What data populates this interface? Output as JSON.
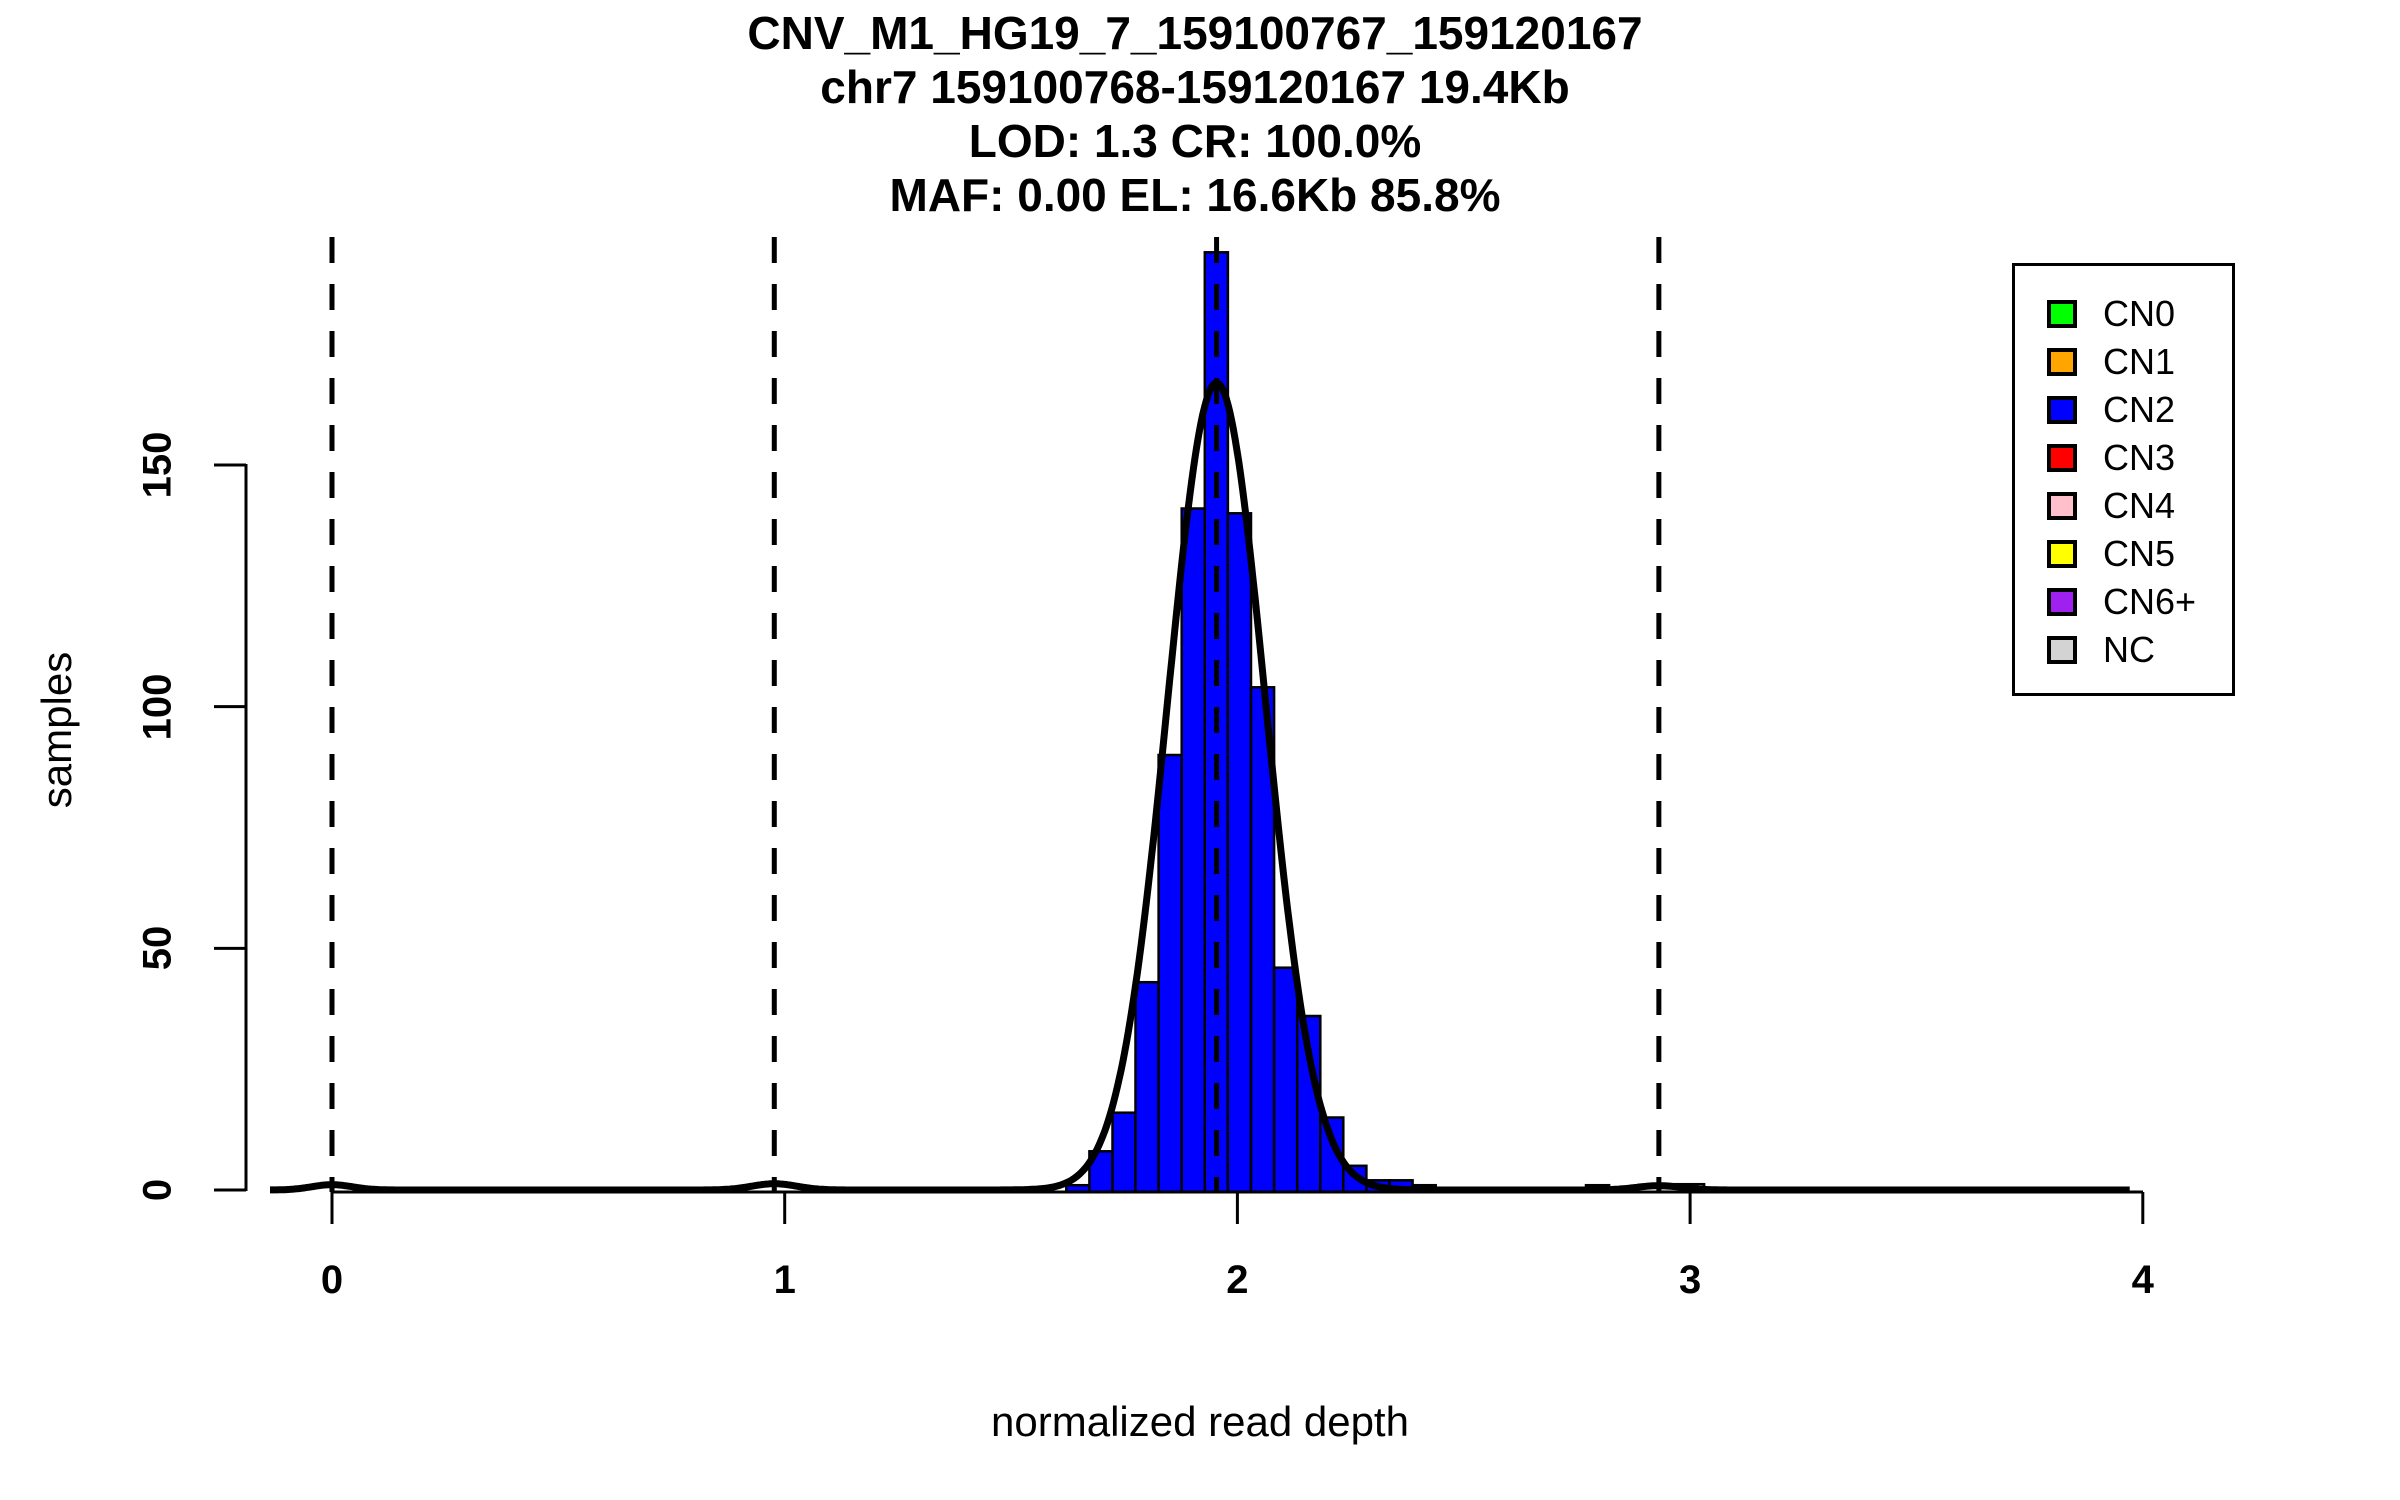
{
  "title": {
    "line1": "CNV_M1_HG19_7_159100767_159120167",
    "line2": "chr7 159100768-159120167 19.4Kb",
    "line3": "LOD: 1.3 CR: 100.0%",
    "line4": "MAF: 0.00 EL: 16.6Kb 85.8%"
  },
  "axes": {
    "x_label": "normalized read depth",
    "y_label": "samples",
    "x_tick_labels": [
      "0",
      "1",
      "2",
      "3",
      "4"
    ],
    "x_tick_values": [
      0,
      1,
      2,
      3,
      4
    ],
    "y_tick_labels": [
      "0",
      "50",
      "100",
      "150"
    ],
    "y_tick_values": [
      0,
      50,
      100,
      150
    ]
  },
  "legend": {
    "items": [
      {
        "label": "CN0",
        "color": "#00FF00"
      },
      {
        "label": "CN1",
        "color": "#FFA500"
      },
      {
        "label": "CN2",
        "color": "#0000FF"
      },
      {
        "label": "CN3",
        "color": "#FF0000"
      },
      {
        "label": "CN4",
        "color": "#FFC0CB"
      },
      {
        "label": "CN5",
        "color": "#FFFF00"
      },
      {
        "label": "CN6+",
        "color": "#A020F0"
      },
      {
        "label": "NC",
        "color": "#D3D3D3"
      }
    ]
  },
  "chart_data": {
    "type": "bar",
    "subtype": "histogram-with-density",
    "title": "CNV_M1_HG19_7_159100767_159120167",
    "subtitle_lines": [
      "chr7 159100768-159120167 19.4Kb",
      "LOD: 1.3 CR: 100.0%",
      "MAF: 0.00 EL: 16.6Kb 85.8%"
    ],
    "xlabel": "normalized read depth",
    "ylabel": "samples",
    "xlim": [
      -0.19,
      4.02
    ],
    "ylim": [
      0,
      197
    ],
    "grid": false,
    "legend_position": "top-right",
    "x_ticks": [
      0,
      1,
      2,
      3,
      4
    ],
    "y_ticks": [
      0,
      50,
      100,
      150
    ],
    "dashed_vlines": [
      0,
      0.977,
      1.954,
      2.931
    ],
    "bin_width": 0.051,
    "bins": [
      {
        "x0": 1.622,
        "count": 1,
        "class": "CN2"
      },
      {
        "x0": 1.673,
        "count": 8,
        "class": "CN2"
      },
      {
        "x0": 1.724,
        "count": 16,
        "class": "CN2"
      },
      {
        "x0": 1.775,
        "count": 43,
        "class": "CN2"
      },
      {
        "x0": 1.826,
        "count": 90,
        "class": "CN2"
      },
      {
        "x0": 1.877,
        "count": 141,
        "class": "CN2"
      },
      {
        "x0": 1.928,
        "count": 194,
        "class": "CN2"
      },
      {
        "x0": 1.979,
        "count": 140,
        "class": "CN2"
      },
      {
        "x0": 2.03,
        "count": 104,
        "class": "CN2"
      },
      {
        "x0": 2.081,
        "count": 46,
        "class": "CN2"
      },
      {
        "x0": 2.132,
        "count": 36,
        "class": "CN2"
      },
      {
        "x0": 2.183,
        "count": 15,
        "class": "CN2"
      },
      {
        "x0": 2.234,
        "count": 5,
        "class": "CN2"
      },
      {
        "x0": 2.285,
        "count": 2,
        "class": "CN2"
      },
      {
        "x0": 2.336,
        "count": 2,
        "class": "CN2"
      },
      {
        "x0": 2.387,
        "count": 1,
        "class": "CN2"
      },
      {
        "x0": 2.77,
        "count": 1,
        "class": "CN2"
      },
      {
        "x0": 2.93,
        "x1": 3.031,
        "count": 1.2,
        "class": "NC"
      }
    ],
    "density_curve": {
      "color": "#000000",
      "components": [
        {
          "mean": 1.954,
          "sd": 0.108,
          "amplitude": 167
        },
        {
          "mean": 0.977,
          "sd": 0.05,
          "amplitude": 1.3
        },
        {
          "mean": 0.0,
          "sd": 0.045,
          "amplitude": 1.1
        },
        {
          "mean": 2.931,
          "sd": 0.05,
          "amplitude": 0.9
        }
      ]
    },
    "class_colors": {
      "CN0": "#00FF00",
      "CN1": "#FFA500",
      "CN2": "#0000FF",
      "CN3": "#FF0000",
      "CN4": "#FFC0CB",
      "CN5": "#FFFF00",
      "CN6+": "#A020F0",
      "NC": "#D3D3D3"
    }
  }
}
